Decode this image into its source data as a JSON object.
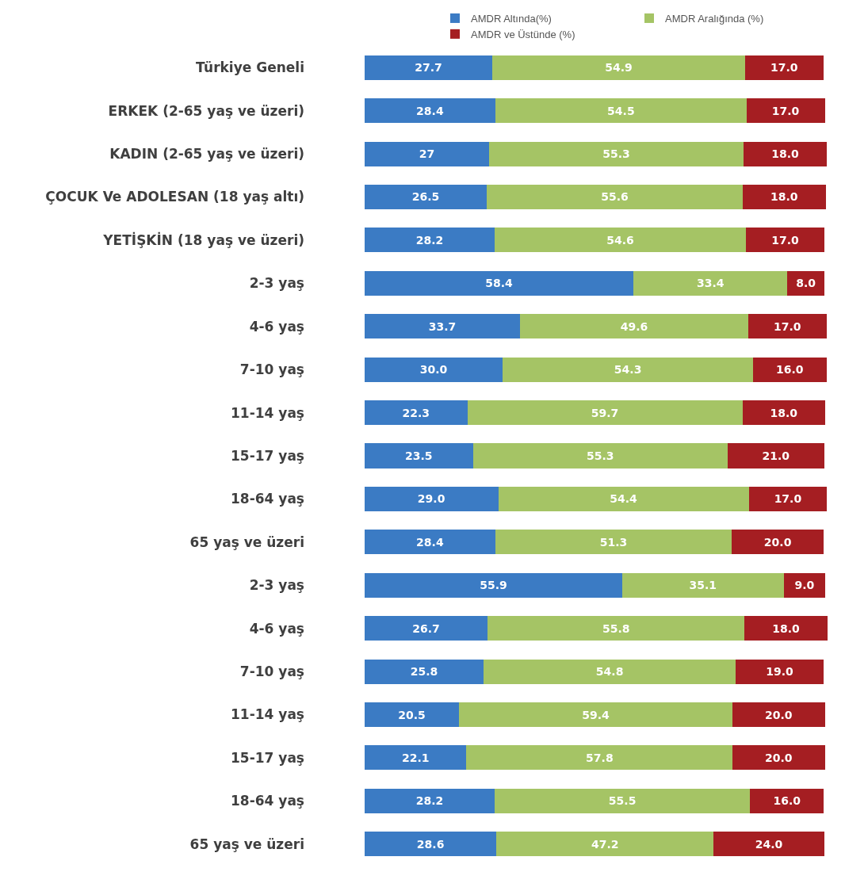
{
  "chart_data": {
    "type": "bar",
    "orientation": "horizontal",
    "stacked": true,
    "legend": "top right",
    "grid": false,
    "tick_labels": "y",
    "xlim": [
      0,
      100.5
    ],
    "categories": [
      "Türkiye Geneli",
      "ERKEK (2-65 yaş ve üzeri)",
      "KADIN (2-65 yaş ve üzeri)",
      "ÇOCUK Ve ADOLESAN (18 yaş altı)",
      "YETİŞKİN (18 yaş ve üzeri)",
      "2-3 yaş",
      "4-6 yaş",
      "7-10 yaş",
      "11-14 yaş",
      "15-17 yaş",
      "18-64 yaş",
      "65 yaş ve üzeri",
      "2-3 yaş",
      "4-6 yaş",
      "7-10 yaş",
      "11-14 yaş",
      "15-17 yaş",
      "18-64 yaş",
      "65 yaş ve üzeri"
    ],
    "series": [
      {
        "name": "AMDR Altında(%)",
        "color": "#3b7bc4",
        "values": [
          27.7,
          28.4,
          27,
          26.5,
          28.2,
          58.4,
          33.7,
          30.0,
          22.3,
          23.5,
          29.0,
          28.4,
          55.9,
          26.7,
          25.8,
          20.5,
          22.1,
          28.2,
          28.6
        ],
        "value_labels": [
          "27.7",
          "28.4",
          "27",
          "26.5",
          "28.2",
          "58.4",
          "33.7",
          "30.0",
          "22.3",
          "23.5",
          "29.0",
          "28.4",
          "55.9",
          "26.7",
          "25.8",
          "20.5",
          "22.1",
          "28.2",
          "28.6"
        ]
      },
      {
        "name": "AMDR Aralığında (%)",
        "color": "#a5c465",
        "values": [
          54.9,
          54.5,
          55.3,
          55.6,
          54.6,
          33.4,
          49.6,
          54.3,
          59.7,
          55.3,
          54.4,
          51.3,
          35.1,
          55.8,
          54.8,
          59.4,
          57.8,
          55.5,
          47.2
        ],
        "value_labels": [
          "54.9",
          "54.5",
          "55.3",
          "55.6",
          "54.6",
          "33.4",
          "49.6",
          "54.3",
          "59.7",
          "55.3",
          "54.4",
          "51.3",
          "35.1",
          "55.8",
          "54.8",
          "59.4",
          "57.8",
          "55.5",
          "47.2"
        ]
      },
      {
        "name": "AMDR ve Üstünde (%)",
        "color": "#a51e22",
        "values": [
          17.0,
          17.0,
          18.0,
          18.0,
          17.0,
          8.0,
          17.0,
          16.0,
          18.0,
          21.0,
          17.0,
          20.0,
          9.0,
          18.0,
          19.0,
          20.0,
          20.0,
          16.0,
          24.0
        ],
        "value_labels": [
          "17.0",
          "17.0",
          "18.0",
          "18.0",
          "17.0",
          "8.0",
          "17.0",
          "16.0",
          "18.0",
          "21.0",
          "17.0",
          "20.0",
          "9.0",
          "18.0",
          "19.0",
          "20.0",
          "20.0",
          "16.0",
          "24.0"
        ]
      }
    ]
  }
}
